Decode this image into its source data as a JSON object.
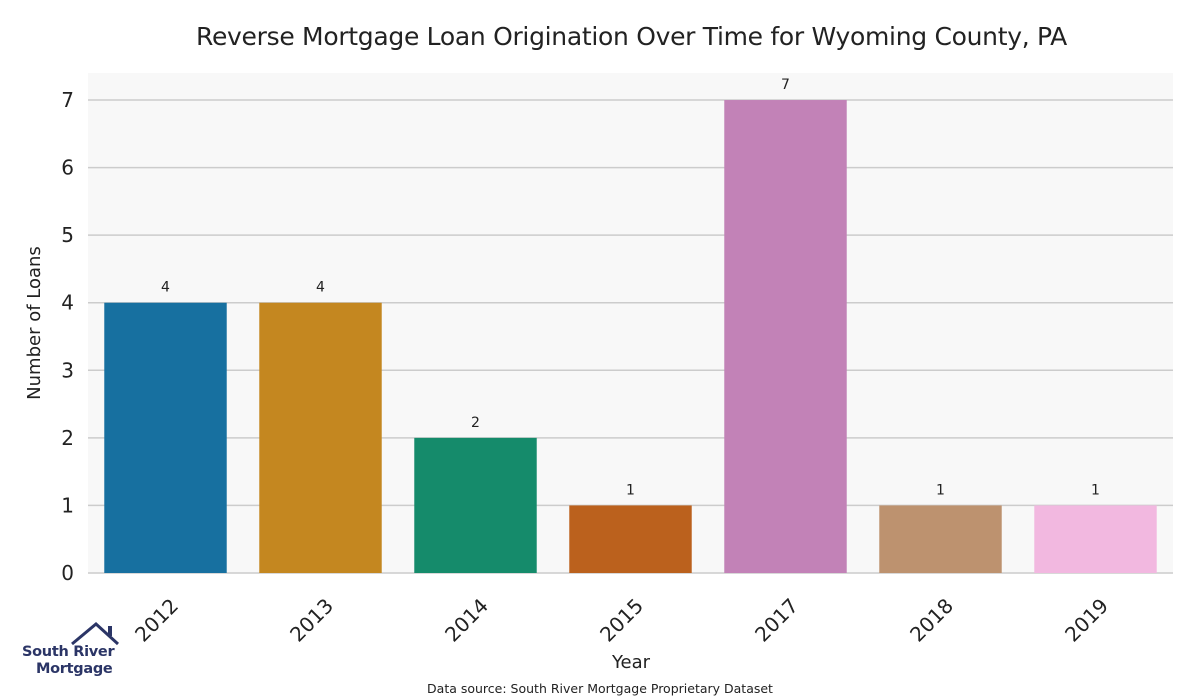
{
  "chart_data": {
    "type": "bar",
    "title": "Reverse Mortgage Loan Origination Over Time for Wyoming County, PA",
    "xlabel": "Year",
    "ylabel": "Number of Loans",
    "categories": [
      "2012",
      "2013",
      "2014",
      "2015",
      "2017",
      "2018",
      "2019"
    ],
    "values": [
      4,
      4,
      2,
      1,
      7,
      1,
      1
    ],
    "data_labels": [
      "4",
      "4",
      "2",
      "1",
      "7",
      "1",
      "1"
    ],
    "colors": [
      "#1770a0",
      "#c48720",
      "#158b6b",
      "#bb611d",
      "#c282b7",
      "#bd926f",
      "#f2b8e0"
    ],
    "yticks": [
      0,
      1,
      2,
      3,
      4,
      5,
      6,
      7
    ],
    "ylim": [
      0,
      7.4
    ],
    "grid": true,
    "legend": "none",
    "background": "#f8f8f8"
  },
  "source_note": "Data source: South River Mortgage Proprietary Dataset",
  "logo": {
    "line1": "South River",
    "line2": "Mortgage",
    "icon": "house-icon",
    "color": "#2b3566"
  }
}
